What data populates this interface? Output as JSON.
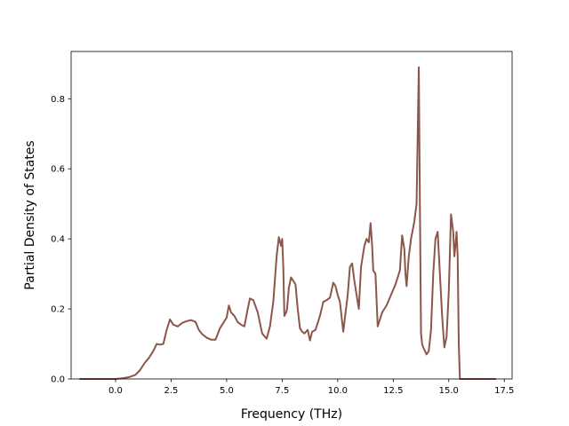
{
  "chart_data": {
    "type": "line",
    "title": "",
    "xlabel": "Frequency (THz)",
    "ylabel": "Partial Density of States",
    "xlim": [
      -2.0,
      17.85
    ],
    "ylim": [
      0.0,
      0.935
    ],
    "xticks": [
      0.0,
      2.5,
      5.0,
      7.5,
      10.0,
      12.5,
      15.0,
      17.5
    ],
    "xtick_labels": [
      "0.0",
      "2.5",
      "5.0",
      "7.5",
      "10.0",
      "12.5",
      "15.0",
      "17.5"
    ],
    "yticks": [
      0.0,
      0.2,
      0.4,
      0.6,
      0.8
    ],
    "ytick_labels": [
      "0.0",
      "0.2",
      "0.4",
      "0.6",
      "0.8"
    ],
    "grid": false,
    "legend": "none",
    "colors": {
      "line": "#8c564b",
      "axes": "#000000",
      "background": "#ffffff"
    },
    "series": [
      {
        "x": [
          -1.6,
          -1.0,
          -0.5,
          0.0,
          0.3,
          0.6,
          0.9,
          1.1,
          1.3,
          1.5,
          1.7,
          1.85,
          2.0,
          2.15,
          2.3,
          2.45,
          2.6,
          2.8,
          3.0,
          3.2,
          3.4,
          3.6,
          3.75,
          3.9,
          4.1,
          4.3,
          4.5,
          4.7,
          4.85,
          5.0,
          5.1,
          5.2,
          5.35,
          5.5,
          5.65,
          5.8,
          5.95,
          6.05,
          6.2,
          6.4,
          6.6,
          6.8,
          6.95,
          7.1,
          7.25,
          7.35,
          7.45,
          7.5,
          7.55,
          7.6,
          7.68,
          7.72,
          7.8,
          7.9,
          8.0,
          8.1,
          8.2,
          8.3,
          8.4,
          8.5,
          8.65,
          8.75,
          8.85,
          9.0,
          9.2,
          9.35,
          9.5,
          9.65,
          9.8,
          9.9,
          10.0,
          10.1,
          10.25,
          10.45,
          10.55,
          10.65,
          10.75,
          10.95,
          11.05,
          11.2,
          11.3,
          11.4,
          11.48,
          11.55,
          11.6,
          11.7,
          11.8,
          11.9,
          12.0,
          12.2,
          12.4,
          12.6,
          12.8,
          12.9,
          13.0,
          13.05,
          13.1,
          13.2,
          13.3,
          13.45,
          13.55,
          13.65,
          13.7,
          13.75,
          13.8,
          13.85,
          14.0,
          14.1,
          14.2,
          14.3,
          14.4,
          14.5,
          14.6,
          14.7,
          14.8,
          14.9,
          15.0,
          15.1,
          15.2,
          15.25,
          15.3,
          15.35,
          15.4,
          15.45,
          15.5,
          15.52,
          15.6,
          16.0,
          16.5,
          17.1
        ],
        "y": [
          0.0,
          0.0,
          0.0,
          0.0,
          0.002,
          0.005,
          0.012,
          0.025,
          0.045,
          0.06,
          0.08,
          0.1,
          0.098,
          0.1,
          0.14,
          0.17,
          0.155,
          0.15,
          0.16,
          0.165,
          0.168,
          0.163,
          0.14,
          0.128,
          0.118,
          0.112,
          0.112,
          0.145,
          0.16,
          0.175,
          0.21,
          0.19,
          0.18,
          0.162,
          0.155,
          0.15,
          0.2,
          0.23,
          0.225,
          0.19,
          0.13,
          0.115,
          0.15,
          0.22,
          0.35,
          0.405,
          0.38,
          0.4,
          0.32,
          0.18,
          0.19,
          0.2,
          0.26,
          0.29,
          0.28,
          0.27,
          0.2,
          0.145,
          0.135,
          0.13,
          0.14,
          0.11,
          0.135,
          0.14,
          0.18,
          0.22,
          0.225,
          0.232,
          0.275,
          0.265,
          0.24,
          0.22,
          0.135,
          0.24,
          0.32,
          0.33,
          0.28,
          0.2,
          0.32,
          0.38,
          0.4,
          0.39,
          0.445,
          0.38,
          0.31,
          0.3,
          0.15,
          0.17,
          0.19,
          0.21,
          0.24,
          0.27,
          0.31,
          0.41,
          0.37,
          0.3,
          0.265,
          0.35,
          0.4,
          0.45,
          0.5,
          0.89,
          0.5,
          0.13,
          0.1,
          0.09,
          0.07,
          0.08,
          0.14,
          0.3,
          0.4,
          0.42,
          0.3,
          0.18,
          0.09,
          0.12,
          0.25,
          0.47,
          0.42,
          0.35,
          0.38,
          0.42,
          0.35,
          0.1,
          0.0,
          0.0,
          0.0,
          0.0,
          0.0,
          0.0
        ]
      }
    ]
  }
}
